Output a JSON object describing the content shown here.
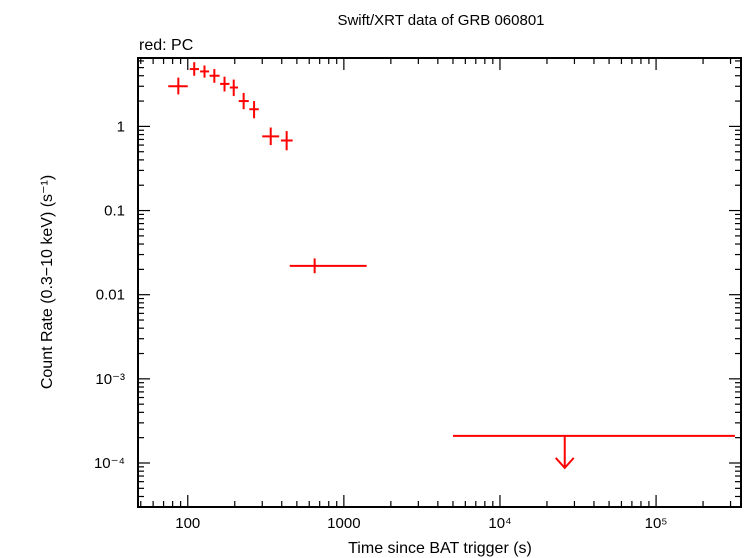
{
  "chart_data": {
    "type": "scatter",
    "title": "Swift/XRT data of GRB 060801",
    "legend_text": "red: PC",
    "xlabel": "Time since BAT trigger (s)",
    "ylabel": "Count Rate (0.3−10 keV) (s⁻¹)",
    "xscale": "log",
    "yscale": "log",
    "xlim": [
      48,
      350000
    ],
    "ylim": [
      3e-05,
      6.5
    ],
    "x_ticks": [
      {
        "value": 100,
        "label": "100"
      },
      {
        "value": 1000,
        "label": "1000"
      },
      {
        "value": 10000,
        "label": "10⁴"
      },
      {
        "value": 100000,
        "label": "10⁵"
      }
    ],
    "y_ticks": [
      {
        "value": 1,
        "label": "1"
      },
      {
        "value": 0.1,
        "label": "0.1"
      },
      {
        "value": 0.01,
        "label": "0.01"
      },
      {
        "value": 0.001,
        "label": "10⁻³"
      },
      {
        "value": 0.0001,
        "label": "10⁻⁴"
      }
    ],
    "series": [
      {
        "name": "PC",
        "color": "#ff0000",
        "points": [
          {
            "x": 87,
            "xlo": 75,
            "xhi": 100,
            "y": 3.0,
            "ylo": 2.4,
            "yhi": 3.8
          },
          {
            "x": 110,
            "xlo": 103,
            "xhi": 118,
            "y": 4.8,
            "ylo": 4.0,
            "yhi": 5.8
          },
          {
            "x": 128,
            "xlo": 120,
            "xhi": 137,
            "y": 4.5,
            "ylo": 3.8,
            "yhi": 5.3
          },
          {
            "x": 148,
            "xlo": 138,
            "xhi": 160,
            "y": 4.0,
            "ylo": 3.3,
            "yhi": 4.8
          },
          {
            "x": 172,
            "xlo": 161,
            "xhi": 185,
            "y": 3.2,
            "ylo": 2.6,
            "yhi": 3.9
          },
          {
            "x": 197,
            "xlo": 186,
            "xhi": 210,
            "y": 2.9,
            "ylo": 2.3,
            "yhi": 3.6
          },
          {
            "x": 228,
            "xlo": 212,
            "xhi": 246,
            "y": 2.0,
            "ylo": 1.6,
            "yhi": 2.5
          },
          {
            "x": 266,
            "xlo": 248,
            "xhi": 285,
            "y": 1.6,
            "ylo": 1.25,
            "yhi": 2.0
          },
          {
            "x": 340,
            "xlo": 300,
            "xhi": 385,
            "y": 0.76,
            "ylo": 0.6,
            "yhi": 0.97
          },
          {
            "x": 430,
            "xlo": 395,
            "xhi": 470,
            "y": 0.68,
            "ylo": 0.52,
            "yhi": 0.88
          },
          {
            "x": 650,
            "xlo": 450,
            "xhi": 1400,
            "y": 0.022,
            "ylo": 0.018,
            "yhi": 0.027
          }
        ]
      }
    ],
    "upper_limits": [
      {
        "x": 26000,
        "xlo": 5000,
        "xhi": 320000,
        "y": 0.00021
      }
    ]
  }
}
